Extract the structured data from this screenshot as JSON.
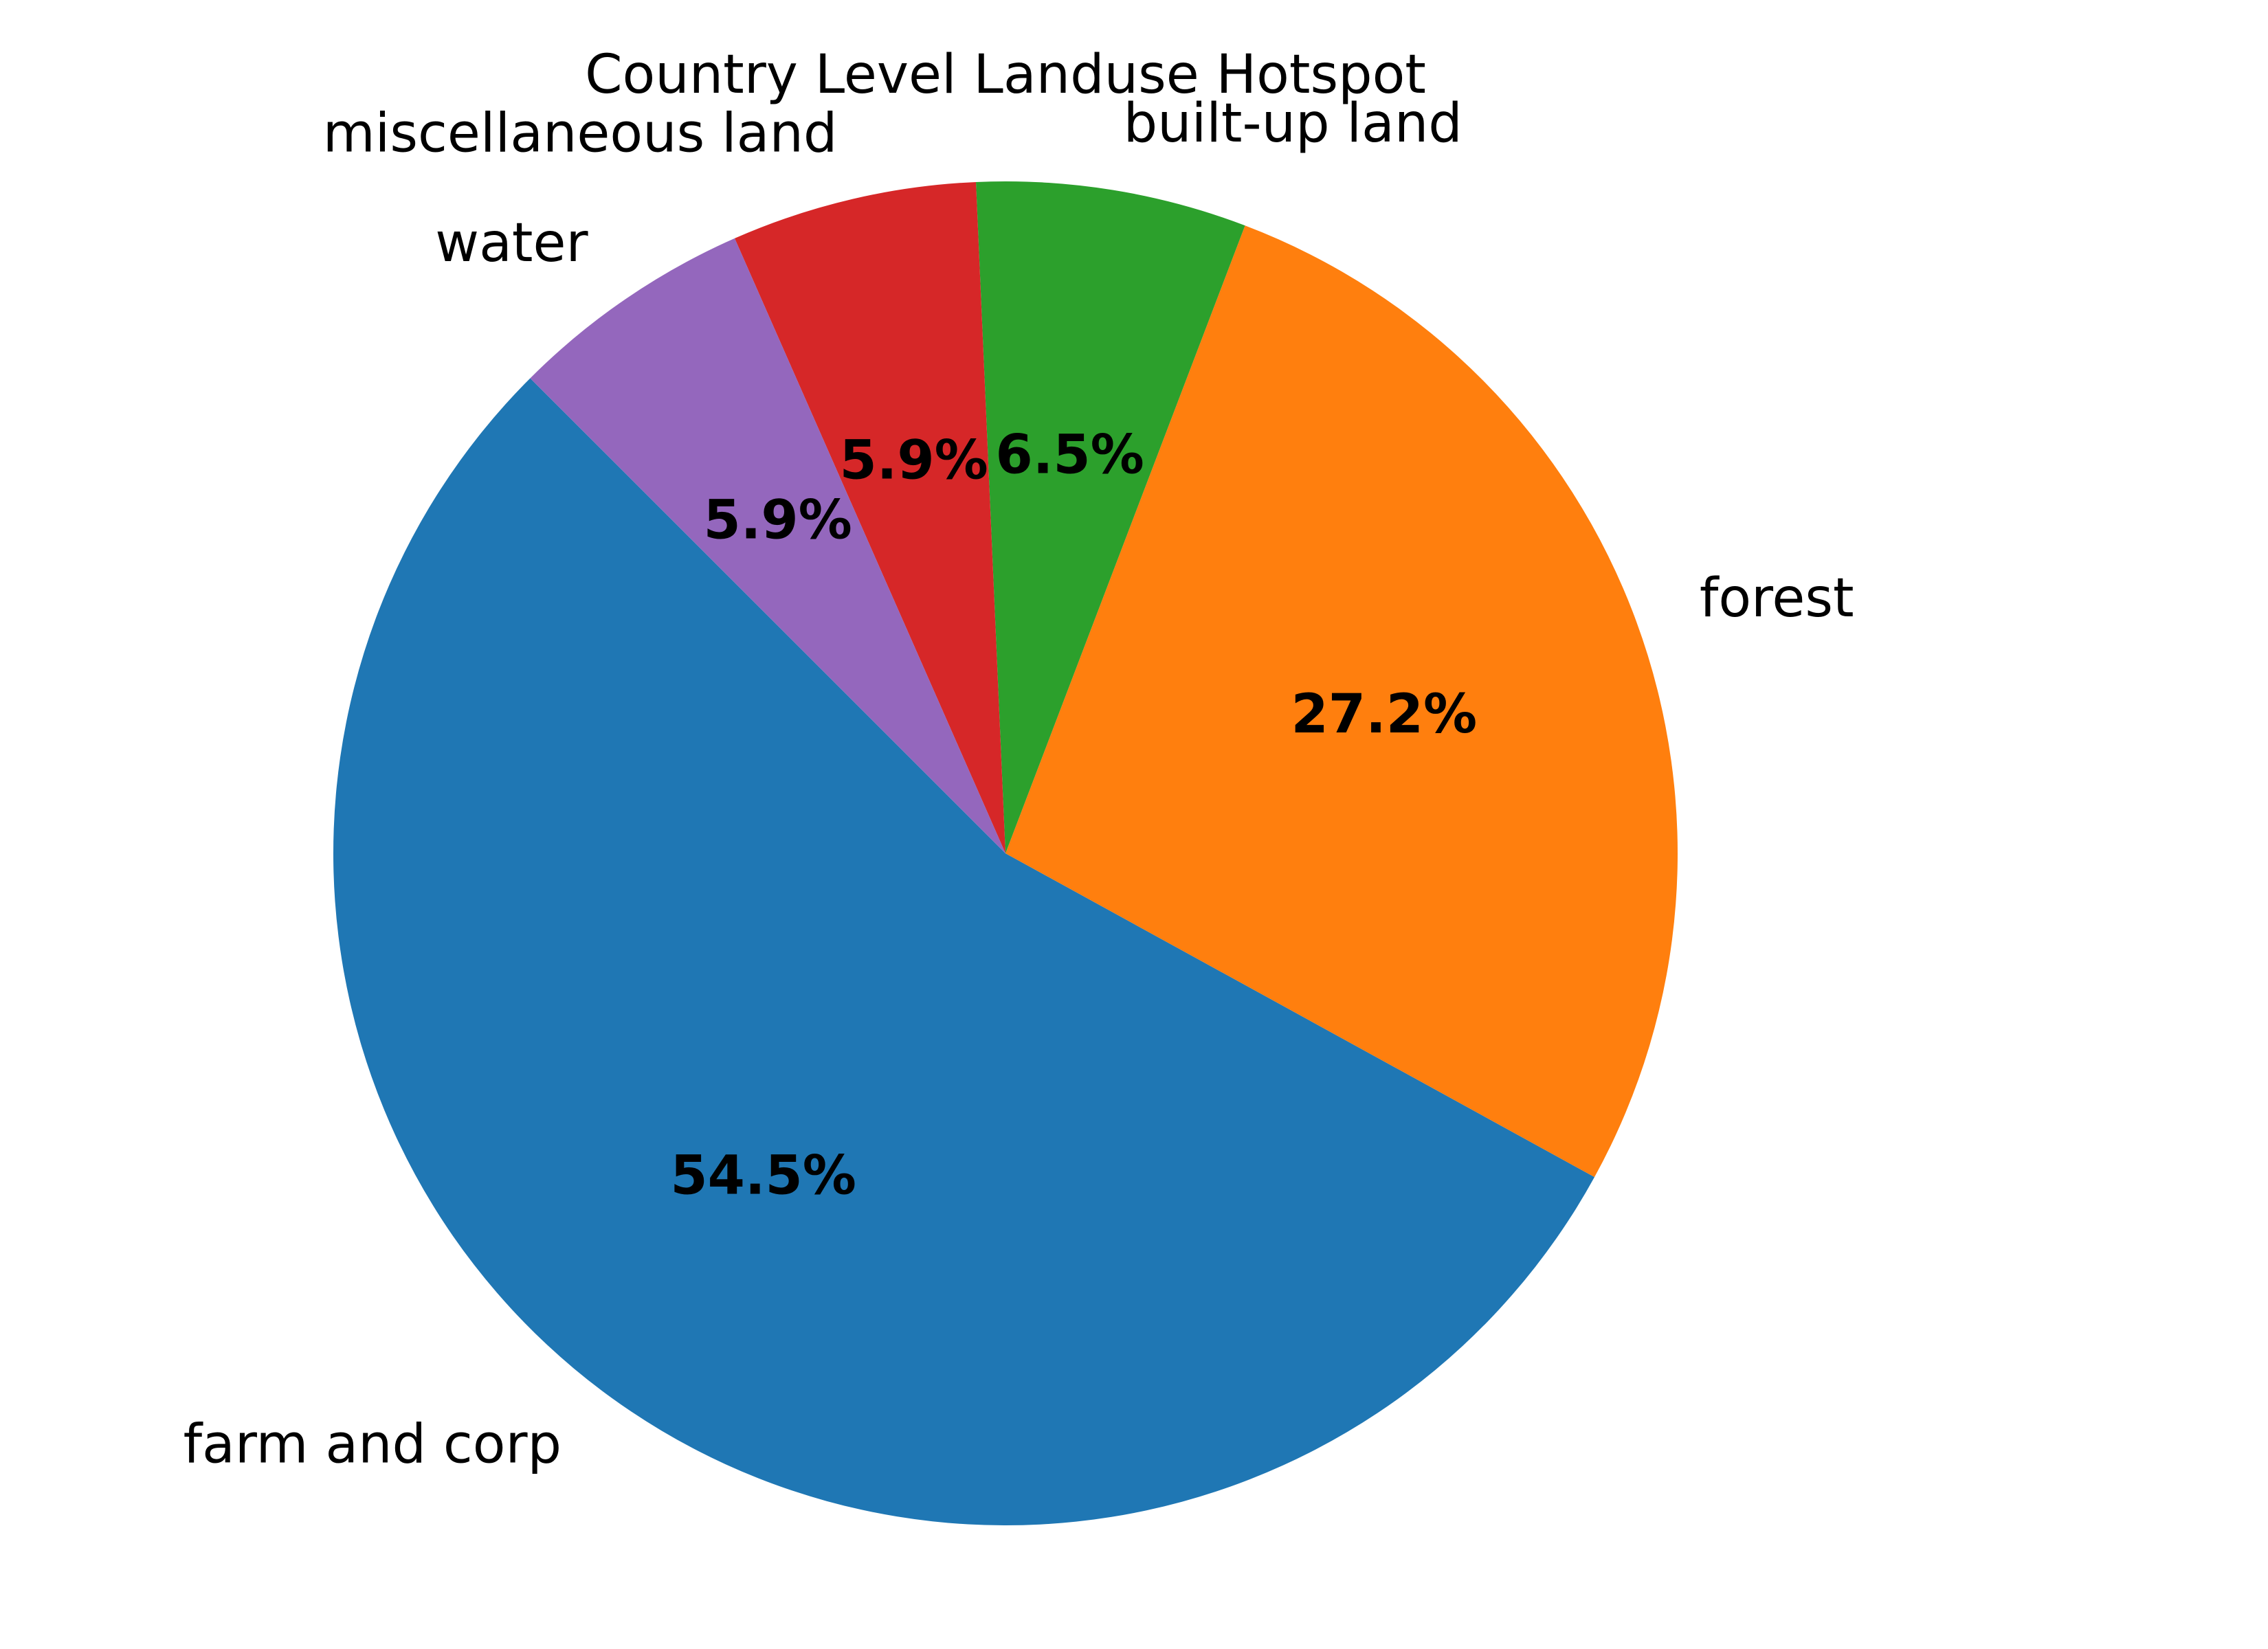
{
  "chart_data": {
    "type": "pie",
    "title": "Country Level Landuse Hotspot",
    "start_angle_deg": 135,
    "direction": "counterclockwise",
    "slices": [
      {
        "label": "farm and corp",
        "value": 54.5,
        "pct_label": "54.5%",
        "color": "#1f77b4"
      },
      {
        "label": "forest",
        "value": 27.2,
        "pct_label": "27.2%",
        "color": "#ff7f0e"
      },
      {
        "label": "built-up land",
        "value": 6.5,
        "pct_label": "6.5%",
        "color": "#2ca02c"
      },
      {
        "label": "miscellaneous land",
        "value": 5.9,
        "pct_label": "5.9%",
        "color": "#d62728"
      },
      {
        "label": "water",
        "value": 5.9,
        "pct_label": "5.9%",
        "color": "#9467bd"
      }
    ]
  }
}
